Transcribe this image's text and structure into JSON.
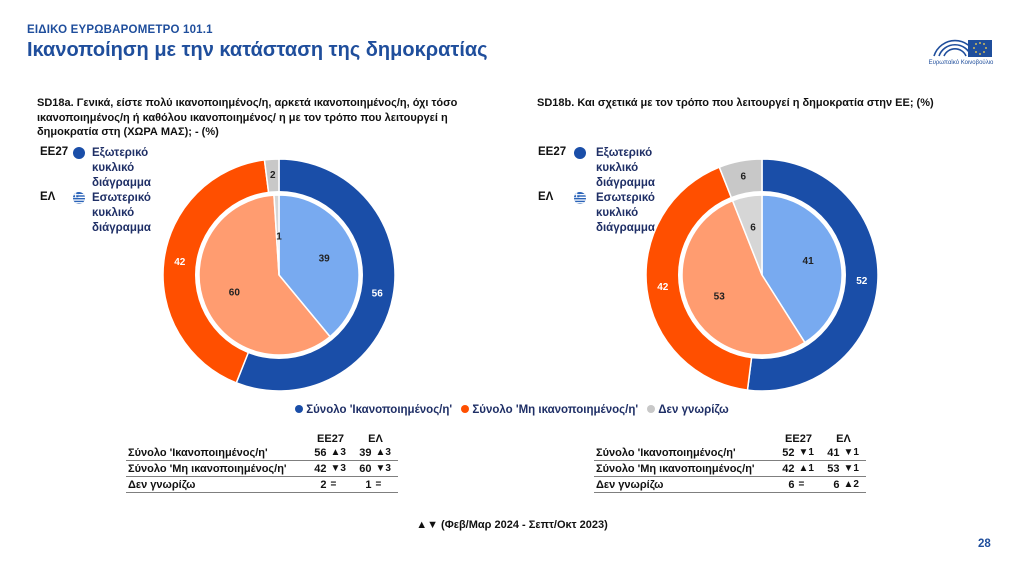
{
  "header": {
    "supertitle": "ΕΙΔΙΚΟ ΕΥΡΩΒΑΡΟΜΕΤΡΟ 101.1",
    "title": "Ικανοποίηση με την κατάσταση της δημοκρατίας",
    "logo_text": "Ευρωπαϊκό Κοινοβούλιο"
  },
  "colors": {
    "satisfied_outer": "#1a4ea8",
    "not_satisfied_outer": "#ff4f00",
    "dontknow_outer": "#c8c8c8",
    "satisfied_inner": "#78aaf0",
    "not_satisfied_inner": "#ff9c70",
    "dontknow_inner": "#d6d6d6",
    "title": "#1f4e9c"
  },
  "legend_side": {
    "eu_code": "ΕΕ27",
    "eu_label": "Εξωτερικό κυκλικό διάγραμμα",
    "gr_code": "ΕΛ",
    "gr_label": "Εσωτερικό κυκλικό διάγραμμα"
  },
  "legend_bottom": {
    "satisfied": "Σύνολο 'Ικανοποιημένος/η'",
    "not_satisfied": "Σύνολο 'Μη ικανοποιημένος/η'",
    "dont_know": "Δεν γνωρίζω"
  },
  "table_headers": {
    "eu": "ΕΕ27",
    "gr": "ΕΛ"
  },
  "chart_data": [
    {
      "type": "pie",
      "id": "SD18a",
      "title": "SD18a. Γενικά, είστε πολύ ικανοποιημένος/η, αρκετά ικανοποιημένος/η, όχι τόσο ικανοποιημένος/η ή καθόλου ικανοποιημένος/ η με τον τρόπο που λειτουργεί η δημοκρατία στη (ΧΩΡΑ ΜΑΣ); - (%)",
      "categories": [
        "Σύνολο 'Ικανοποιημένος/η'",
        "Σύνολο 'Μη ικανοποιημένος/η'",
        "Δεν γνωρίζω"
      ],
      "series": [
        {
          "name": "ΕΕ27",
          "ring": "outer",
          "values": [
            56,
            42,
            2
          ],
          "labels": [
            "56",
            "42",
            "2"
          ]
        },
        {
          "name": "ΕΛ",
          "ring": "inner",
          "values": [
            39,
            60,
            1
          ],
          "labels": [
            "39",
            "60",
            "1"
          ]
        }
      ],
      "table": [
        {
          "label": "Σύνολο 'Ικανοποιημένος/η'",
          "eu": "56",
          "eu_change": "▲3",
          "gr": "39",
          "gr_change": "▲3"
        },
        {
          "label": "Σύνολο 'Μη ικανοποιημένος/η'",
          "eu": "42",
          "eu_change": "▼3",
          "gr": "60",
          "gr_change": "▼3"
        },
        {
          "label": "Δεν γνωρίζω",
          "eu": "2",
          "eu_change": "=",
          "gr": "1",
          "gr_change": "="
        }
      ]
    },
    {
      "type": "pie",
      "id": "SD18b",
      "title": "SD18b. Και σχετικά με τον τρόπο που λειτουργεί η δημοκρατία στην ΕΕ; (%)",
      "categories": [
        "Σύνολο 'Ικανοποιημένος/η'",
        "Σύνολο 'Μη ικανοποιημένος/η'",
        "Δεν γνωρίζω"
      ],
      "series": [
        {
          "name": "ΕΕ27",
          "ring": "outer",
          "values": [
            52,
            42,
            6
          ],
          "labels": [
            "52",
            "42",
            "6"
          ]
        },
        {
          "name": "ΕΛ",
          "ring": "inner",
          "values": [
            41,
            53,
            6
          ],
          "labels": [
            "41",
            "53",
            "6"
          ]
        }
      ],
      "table": [
        {
          "label": "Σύνολο 'Ικανοποιημένος/η'",
          "eu": "52",
          "eu_change": "▼1",
          "gr": "41",
          "gr_change": "▼1"
        },
        {
          "label": "Σύνολο 'Μη ικανοποιημένος/η'",
          "eu": "42",
          "eu_change": "▲1",
          "gr": "53",
          "gr_change": "▼1"
        },
        {
          "label": "Δεν γνωρίζω",
          "eu": "6",
          "eu_change": "=",
          "gr": "6",
          "gr_change": "▲2"
        }
      ]
    }
  ],
  "footnote": "▲▼ (Φεβ/Μαρ 2024 - Σεπτ/Οκτ 2023)",
  "page_number": "28"
}
